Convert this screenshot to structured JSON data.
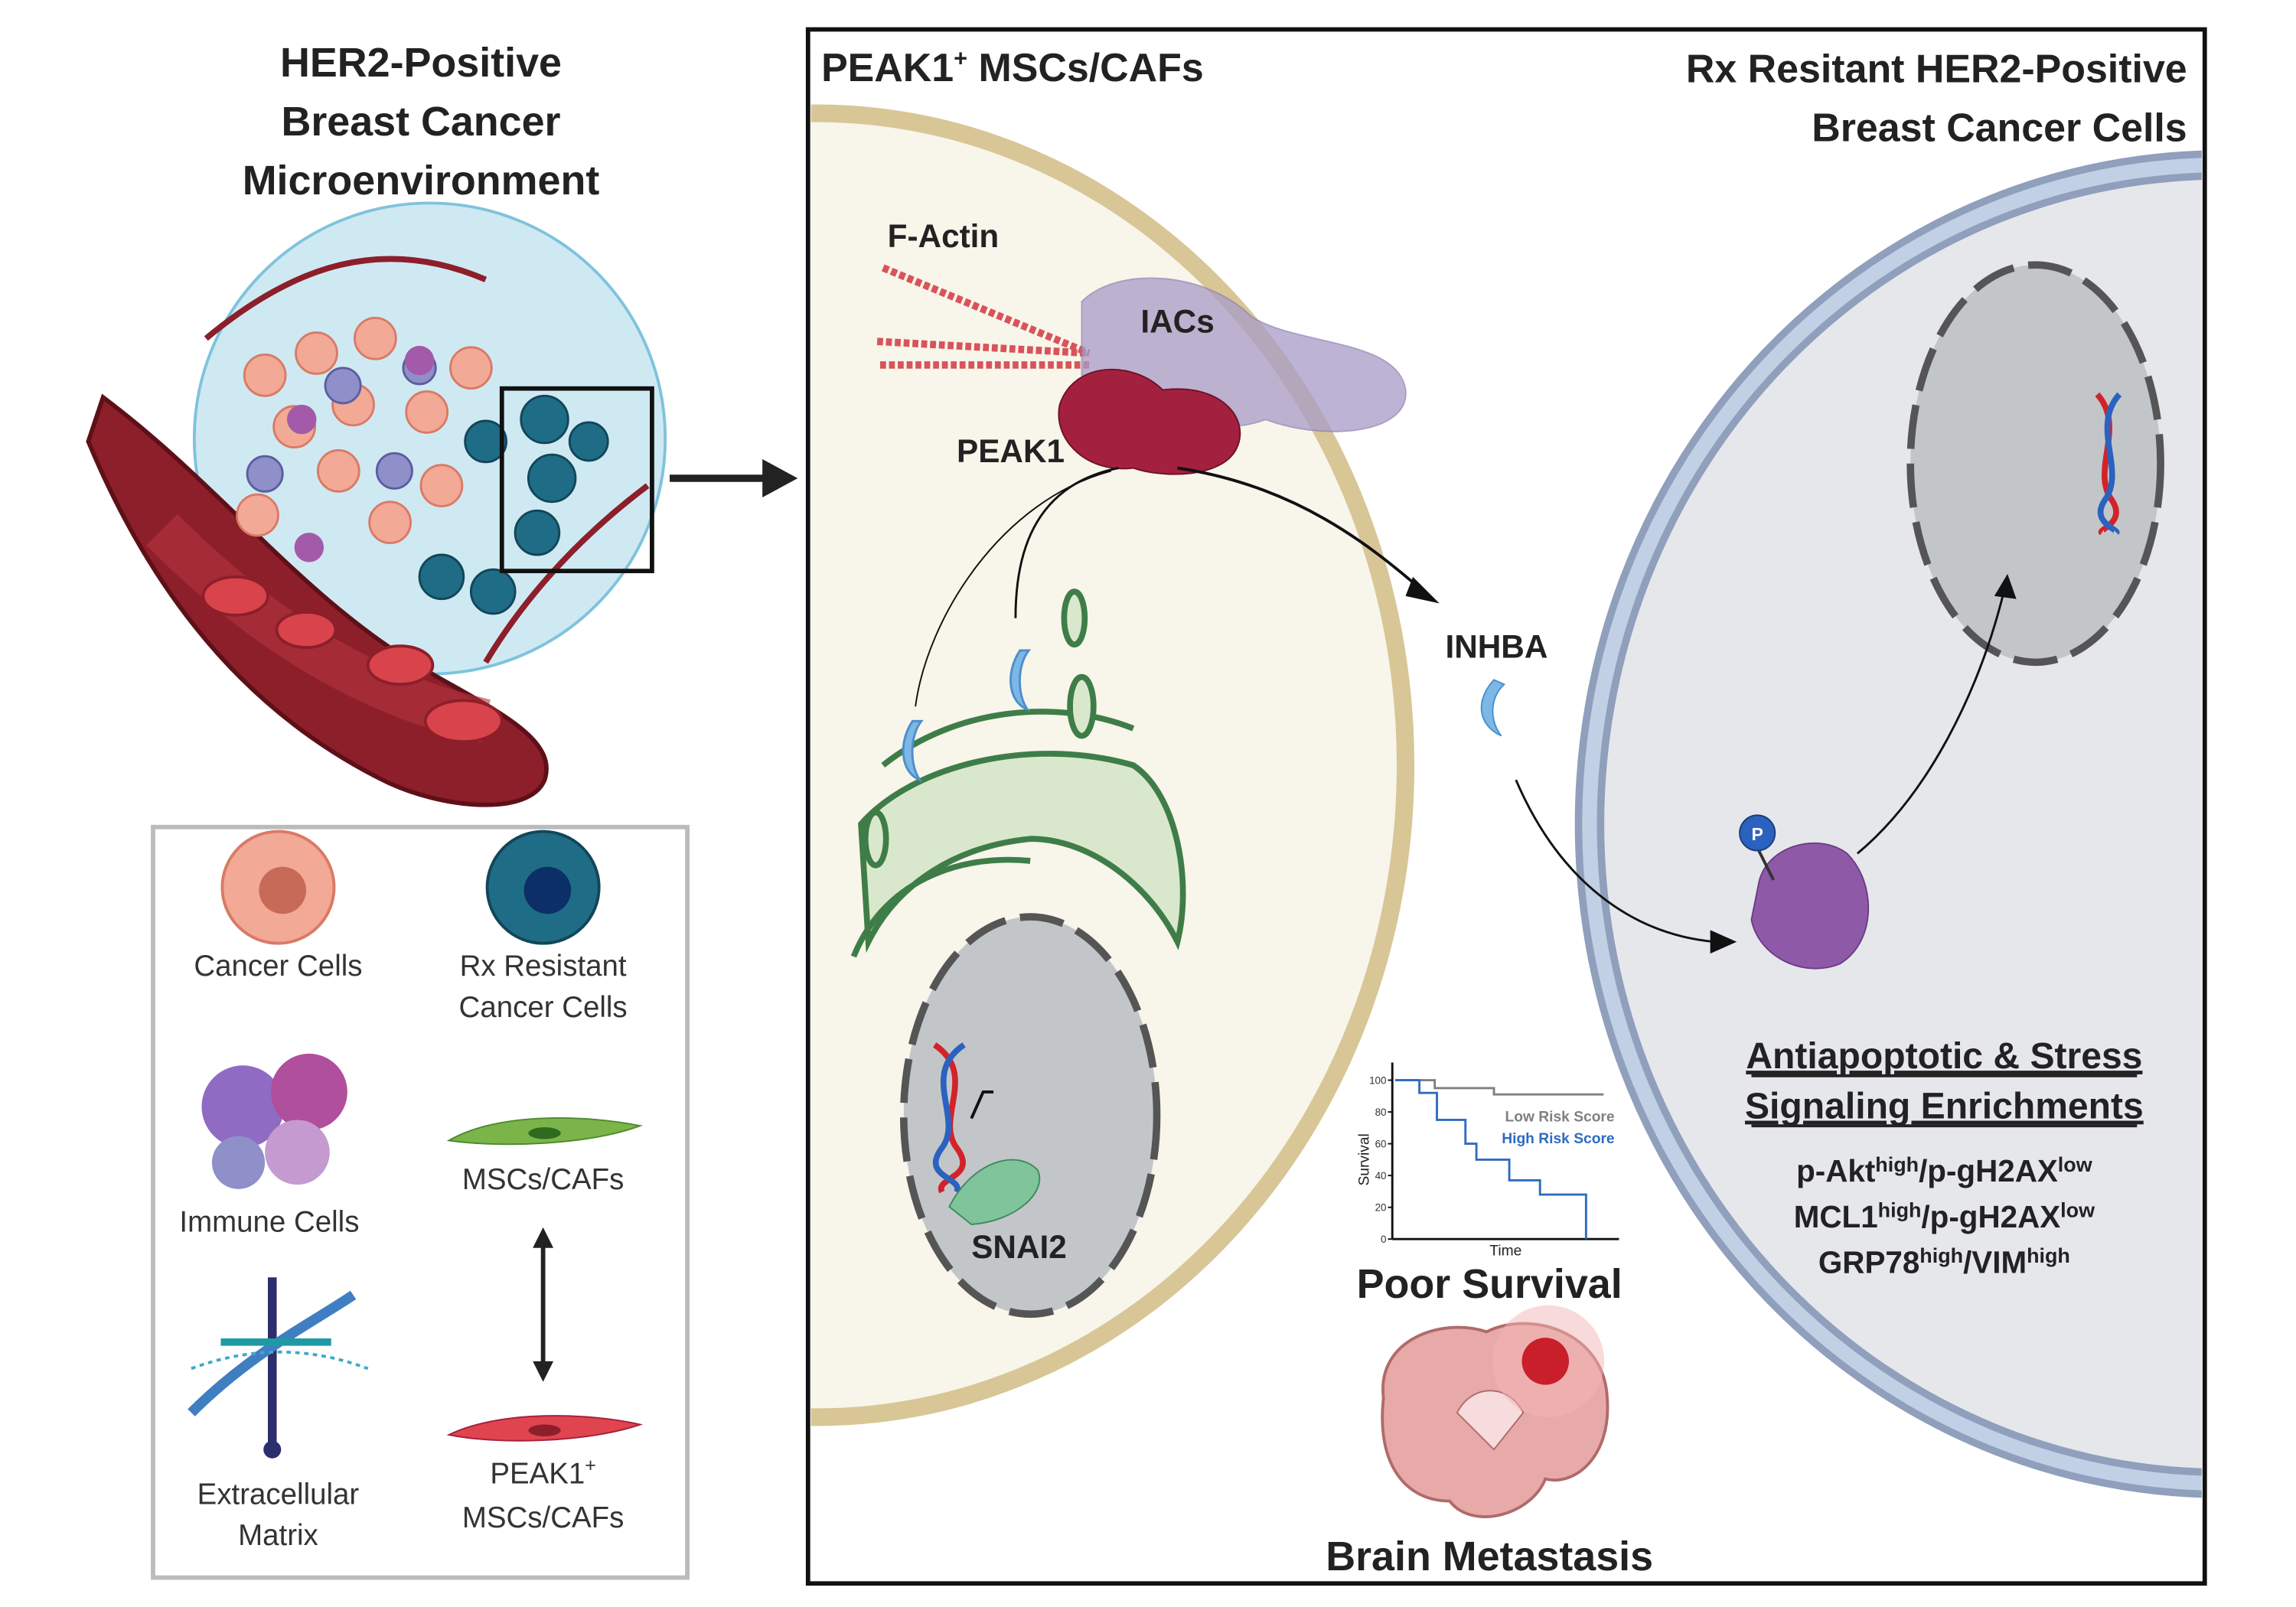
{
  "left_title": [
    "HER2-Positive",
    "Breast Cancer",
    "Microenvironment"
  ],
  "legend": {
    "cancer_cells": [
      "Cancer Cells"
    ],
    "rx_resistant": [
      "Rx Resistant",
      "Cancer Cells"
    ],
    "immune_cells": [
      "Immune Cells"
    ],
    "mscs_cafs": [
      "MSCs/CAFs"
    ],
    "ecm": [
      "Extracellular",
      "Matrix"
    ],
    "peak1_mscs": {
      "main": "PEAK1",
      "sup": "+",
      "line2": "MSCs/CAFs"
    }
  },
  "panel": {
    "left_header": {
      "main": "PEAK1",
      "sup": "+",
      "rest": " MSCs/CAFs"
    },
    "right_header": [
      "Rx Resitant HER2-Positive",
      "Breast Cancer Cells"
    ],
    "labels": {
      "f_actin": "F-Actin",
      "iacs": "IACs",
      "peak1": "PEAK1",
      "inhba": "INHBA",
      "snai2": "SNAI2",
      "phospho": "P"
    },
    "enrichment_title": [
      "Antiapoptotic & Stress",
      "Signaling Enrichments"
    ],
    "markers": [
      [
        {
          "t": "p-Akt"
        },
        {
          "s": "high"
        },
        {
          "t": "/p-gH2AX"
        },
        {
          "s": "low"
        }
      ],
      [
        {
          "t": "MCL1"
        },
        {
          "s": "high"
        },
        {
          "t": "/p-gH2AX"
        },
        {
          "s": "low"
        }
      ],
      [
        {
          "t": "GRP78"
        },
        {
          "s": "high"
        },
        {
          "t": "/VIM"
        },
        {
          "s": "high"
        }
      ]
    ],
    "poor_survival": "Poor Survival",
    "brain_metastasis": "Brain Metastasis"
  },
  "colors": {
    "msc_cell": "#f8f5ea",
    "msc_membrane": "#d8c696",
    "cancer_cell": "#e6e7eb",
    "cancer_membrane": "#a9b9d8",
    "nucleus": "#c3c6c9",
    "peak1": "#a3213f",
    "iacs": "#a89cc8",
    "er": "#d9e8cc",
    "er_stroke": "#3f7d48",
    "low_risk": "#808080",
    "high_risk": "#2f6cbf"
  },
  "chart_data": {
    "type": "line",
    "title": "",
    "xlabel": "Time",
    "ylabel": "Survival",
    "ylim": [
      0,
      100
    ],
    "yticks": [
      "0",
      "20",
      "40",
      "60",
      "80",
      "100"
    ],
    "series": [
      {
        "name": "Low Risk Score",
        "step": true,
        "x": [
          0,
          0.18,
          0.18,
          0.45,
          0.45,
          0.95
        ],
        "y": [
          100,
          100,
          95,
          95,
          91,
          91
        ]
      },
      {
        "name": "High Risk Score",
        "step": true,
        "x": [
          0,
          0.11,
          0.11,
          0.19,
          0.19,
          0.32,
          0.32,
          0.37,
          0.37,
          0.52,
          0.52,
          0.66,
          0.66,
          0.87,
          0.87
        ],
        "y": [
          100,
          100,
          92,
          92,
          75,
          75,
          60,
          60,
          50,
          50,
          37,
          37,
          28,
          28,
          0
        ]
      }
    ]
  }
}
